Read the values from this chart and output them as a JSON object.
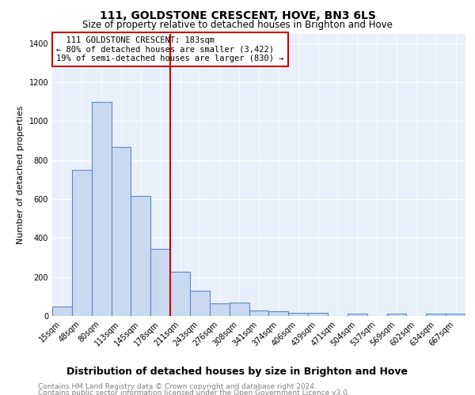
{
  "title": "111, GOLDSTONE CRESCENT, HOVE, BN3 6LS",
  "subtitle": "Size of property relative to detached houses in Brighton and Hove",
  "xlabel": "Distribution of detached houses by size in Brighton and Hove",
  "ylabel": "Number of detached properties",
  "footer_line1": "Contains HM Land Registry data © Crown copyright and database right 2024.",
  "footer_line2": "Contains public sector information licensed under the Open Government Licence v3.0.",
  "categories": [
    "15sqm",
    "48sqm",
    "80sqm",
    "113sqm",
    "145sqm",
    "178sqm",
    "211sqm",
    "243sqm",
    "276sqm",
    "308sqm",
    "341sqm",
    "374sqm",
    "406sqm",
    "439sqm",
    "471sqm",
    "504sqm",
    "537sqm",
    "569sqm",
    "602sqm",
    "634sqm",
    "667sqm"
  ],
  "values": [
    48,
    750,
    1100,
    870,
    615,
    345,
    228,
    130,
    65,
    70,
    28,
    26,
    18,
    15,
    0,
    12,
    0,
    12,
    0,
    12,
    12
  ],
  "bar_color": "#c9d9f0",
  "bar_edge_color": "#5a8ac6",
  "vline_x": 5.5,
  "vline_color": "#cc0000",
  "annotation_line1": "  111 GOLDSTONE CRESCENT: 183sqm",
  "annotation_line2": "← 80% of detached houses are smaller (3,422)",
  "annotation_line3": "19% of semi-detached houses are larger (830) →",
  "annotation_box_color": "white",
  "annotation_box_edge": "#cc0000",
  "ylim": [
    0,
    1450
  ],
  "yticks": [
    0,
    200,
    400,
    600,
    800,
    1000,
    1200,
    1400
  ],
  "background_color": "#eaf0fb",
  "grid_color": "white",
  "title_fontsize": 10,
  "subtitle_fontsize": 8.5,
  "xlabel_fontsize": 9,
  "ylabel_fontsize": 8,
  "tick_fontsize": 7,
  "annotation_fontsize": 7.5,
  "footer_fontsize": 6.5
}
